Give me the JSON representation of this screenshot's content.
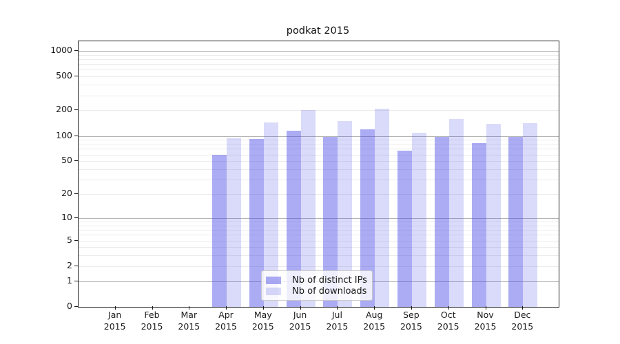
{
  "chart_data": {
    "type": "bar",
    "title": "podkat 2015",
    "year_label": "2015",
    "categories": [
      "Jan",
      "Feb",
      "Mar",
      "Apr",
      "May",
      "Jun",
      "Jul",
      "Aug",
      "Sep",
      "Oct",
      "Nov",
      "Dec"
    ],
    "series": [
      {
        "name": "Nb of distinct IPs",
        "color": "rgba(70,70,230,0.45)",
        "values": [
          0,
          0,
          0,
          60,
          92,
          115,
          98,
          119,
          67,
          98,
          82,
          97
        ]
      },
      {
        "name": "Nb of downloads",
        "color": "rgba(70,70,230,0.20)",
        "values": [
          0,
          0,
          0,
          93,
          143,
          201,
          150,
          210,
          109,
          157,
          138,
          141
        ]
      }
    ],
    "y_axis": {
      "scale": "log10(1+v)",
      "ticks": [
        0,
        1,
        2,
        5,
        10,
        20,
        50,
        100,
        200,
        500,
        1000
      ],
      "tick_labels": [
        "0",
        "1",
        "2",
        "5",
        "10",
        "20",
        "50",
        "100",
        "200",
        "500",
        "1000"
      ]
    },
    "grid": {
      "major_values": [
        1,
        10,
        100,
        1000
      ],
      "minor_multipliers": [
        2,
        3,
        4,
        5,
        6,
        7,
        8,
        9
      ],
      "minor_decades": [
        1,
        10,
        100
      ],
      "major_color": "#b3b3b3",
      "minor_color": "#ebebeb"
    },
    "legend": {
      "position": "lower-center-inside"
    }
  }
}
